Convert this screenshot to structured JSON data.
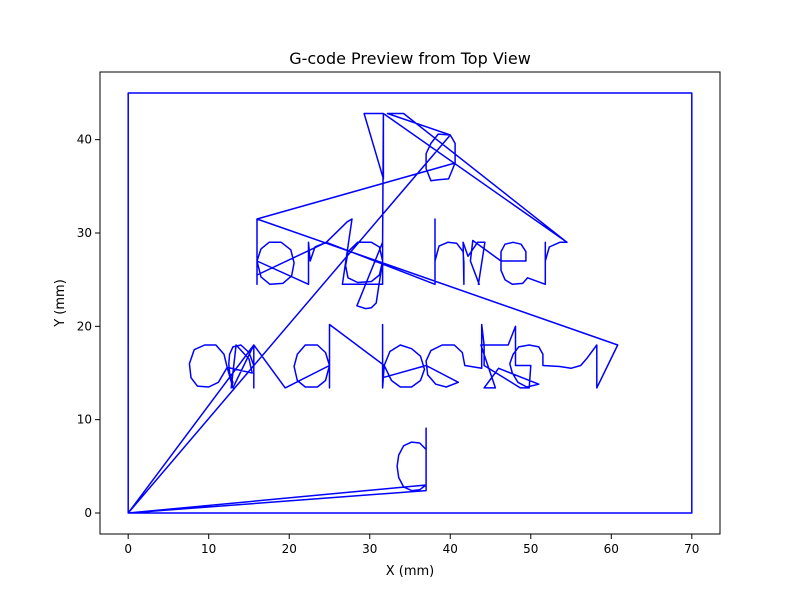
{
  "chart_data": {
    "type": "line",
    "title": "G-code Preview from Top View",
    "xlabel": "X (mm)",
    "ylabel": "Y (mm)",
    "xlim": [
      -3.5,
      73.5
    ],
    "ylim": [
      -2.25,
      47.25
    ],
    "xticks": [
      0,
      10,
      20,
      30,
      40,
      50,
      60,
      70
    ],
    "yticks": [
      0,
      10,
      20,
      30,
      40
    ],
    "grid": false,
    "legend": "none",
    "line_color": "#0000ff",
    "series": [
      {
        "points": [
          [
            0,
            0
          ],
          [
            70,
            0
          ],
          [
            70,
            45
          ],
          [
            0,
            45
          ],
          [
            0,
            0
          ],
          [
            37,
            3
          ],
          [
            36.2,
            2.5
          ],
          [
            35.2,
            2.4
          ],
          [
            34.2,
            2.8
          ],
          [
            33.6,
            3.8
          ],
          [
            33.4,
            5
          ],
          [
            33.6,
            6.2
          ],
          [
            34.2,
            7.2
          ],
          [
            35.2,
            7.6
          ],
          [
            36.2,
            7.5
          ],
          [
            37,
            6.8
          ],
          [
            37,
            9.1
          ],
          [
            37,
            2.4
          ],
          [
            0,
            0
          ],
          [
            40,
            40.5
          ],
          [
            38.5,
            40.6
          ],
          [
            37.6,
            39.6
          ],
          [
            37,
            38.5
          ],
          [
            37,
            36.9
          ],
          [
            37.6,
            35.6
          ],
          [
            38.5,
            35.7
          ],
          [
            39.8,
            35.8
          ],
          [
            40.6,
            37.5
          ],
          [
            40.6,
            39.6
          ],
          [
            40,
            40.5
          ],
          [
            32.2,
            42.8
          ],
          [
            34.2,
            42.8
          ],
          [
            54.5,
            29
          ],
          [
            31.7,
            42.8
          ],
          [
            29.3,
            42.8
          ],
          [
            31.7,
            35.8
          ],
          [
            31.7,
            42.8
          ],
          [
            31.6,
            29
          ],
          [
            31.6,
            24.5
          ],
          [
            31.6,
            27
          ],
          [
            31.2,
            28.5
          ],
          [
            30.2,
            29
          ],
          [
            28.5,
            29
          ],
          [
            27.3,
            28
          ],
          [
            27,
            26.5
          ],
          [
            27.3,
            25.2
          ],
          [
            28.5,
            24.7
          ],
          [
            30.2,
            24.8
          ],
          [
            31.2,
            25.5
          ],
          [
            31.6,
            27
          ],
          [
            30.8,
            22.5
          ],
          [
            30.2,
            22
          ],
          [
            29.5,
            21.9
          ],
          [
            28.4,
            22.2
          ],
          [
            31.6,
            29
          ],
          [
            31.6,
            24.5
          ],
          [
            26.6,
            24.5
          ],
          [
            27.8,
            31.5
          ],
          [
            27.2,
            31.2
          ],
          [
            24.6,
            29
          ],
          [
            16,
            25.5
          ],
          [
            16,
            31.5
          ],
          [
            60.8,
            18
          ],
          [
            58.2,
            13.4
          ],
          [
            58.2,
            18
          ],
          [
            57,
            16.6
          ],
          [
            56.2,
            15.8
          ],
          [
            55,
            15.5
          ],
          [
            53.6,
            15.7
          ],
          [
            51.5,
            15.8
          ],
          [
            51.5,
            17
          ],
          [
            51,
            17.8
          ],
          [
            49.8,
            18
          ],
          [
            48.5,
            17.8
          ],
          [
            47.8,
            17
          ],
          [
            47.4,
            16
          ],
          [
            47.7,
            15
          ],
          [
            48.4,
            14
          ],
          [
            49.5,
            13.5
          ],
          [
            51,
            13.8
          ],
          [
            46,
            15.5
          ],
          [
            44.2,
            13.4
          ],
          [
            45.6,
            13.4
          ],
          [
            43.8,
            18
          ],
          [
            47.2,
            18
          ],
          [
            48.1,
            20
          ],
          [
            48.1,
            15.8
          ],
          [
            50,
            15.8
          ],
          [
            49.8,
            13.4
          ],
          [
            48.7,
            13.4
          ],
          [
            44.2,
            15.8
          ],
          [
            44.2,
            18
          ],
          [
            43.9,
            20.2
          ],
          [
            43.9,
            15.5
          ],
          [
            41.8,
            15.8
          ],
          [
            41.5,
            17.2
          ],
          [
            40.5,
            18
          ],
          [
            39,
            18
          ],
          [
            37.6,
            17.4
          ],
          [
            37,
            16.3
          ],
          [
            37.2,
            14.8
          ],
          [
            38.2,
            13.8
          ],
          [
            39.5,
            13.5
          ],
          [
            41,
            14
          ],
          [
            37,
            15.8
          ],
          [
            31.6,
            14.5
          ],
          [
            31.6,
            20.2
          ],
          [
            31.6,
            13.4
          ],
          [
            31.8,
            15.8
          ],
          [
            32.5,
            17.3
          ],
          [
            33.8,
            18
          ],
          [
            35.2,
            17.6
          ],
          [
            36.3,
            16.8
          ],
          [
            36.8,
            15.4
          ],
          [
            36.3,
            14.2
          ],
          [
            35.2,
            13.5
          ],
          [
            33.8,
            13.5
          ],
          [
            32.7,
            14.2
          ],
          [
            31.8,
            15.8
          ],
          [
            25,
            20.2
          ],
          [
            25,
            13.4
          ],
          [
            25,
            15.8
          ],
          [
            24.5,
            17.2
          ],
          [
            23.5,
            18
          ],
          [
            22,
            18
          ],
          [
            21,
            17
          ],
          [
            20.6,
            15.7
          ],
          [
            21,
            14.2
          ],
          [
            22,
            13.5
          ],
          [
            23.5,
            13.5
          ],
          [
            24.5,
            14.2
          ],
          [
            25,
            15.8
          ],
          [
            19.5,
            13.4
          ],
          [
            15.6,
            18
          ],
          [
            15.6,
            13.4
          ],
          [
            15.6,
            15.8
          ],
          [
            15,
            17.2
          ],
          [
            14,
            18
          ],
          [
            13,
            17.8
          ],
          [
            12.6,
            17
          ],
          [
            12.5,
            16
          ],
          [
            12.6,
            15
          ],
          [
            13,
            14
          ],
          [
            12.8,
            13.4
          ],
          [
            13.4,
            18
          ],
          [
            15,
            16.5
          ],
          [
            15.4,
            15
          ],
          [
            12.3,
            15.6
          ],
          [
            11.9,
            17
          ],
          [
            10.9,
            18
          ],
          [
            9.5,
            18
          ],
          [
            8.2,
            17.5
          ],
          [
            7.6,
            16
          ],
          [
            7.8,
            14.5
          ],
          [
            8.6,
            13.6
          ],
          [
            10,
            13.5
          ],
          [
            11.2,
            14
          ],
          [
            12.3,
            15.6
          ],
          [
            13,
            13.4
          ],
          [
            15.6,
            18
          ],
          [
            0,
            0
          ],
          [
            40,
            40.5
          ],
          [
            40.6,
            39.6
          ],
          [
            40.6,
            37.5
          ],
          [
            16,
            31.5
          ],
          [
            16,
            24.5
          ],
          [
            16,
            27
          ],
          [
            16.5,
            28.3
          ],
          [
            17.5,
            29
          ],
          [
            19,
            29
          ],
          [
            20.2,
            28.2
          ],
          [
            20.6,
            26.8
          ],
          [
            20.3,
            25.4
          ],
          [
            19.2,
            24.6
          ],
          [
            17.6,
            24.5
          ],
          [
            16.5,
            25.3
          ],
          [
            16,
            27
          ],
          [
            22.4,
            24.5
          ],
          [
            22.4,
            29
          ],
          [
            22.6,
            27
          ],
          [
            23.2,
            28.5
          ],
          [
            24.6,
            29
          ],
          [
            38.1,
            24.5
          ],
          [
            38.1,
            31.5
          ],
          [
            38.1,
            27
          ],
          [
            38.6,
            28.6
          ],
          [
            39.7,
            29
          ],
          [
            40.8,
            28.9
          ],
          [
            41.6,
            28
          ],
          [
            41.7,
            26.8
          ],
          [
            41.7,
            24.5
          ],
          [
            41.6,
            29
          ],
          [
            42.2,
            27.5
          ],
          [
            43.4,
            29
          ],
          [
            44.3,
            29
          ],
          [
            43.5,
            24.5
          ],
          [
            43.6,
            24.5
          ],
          [
            42.5,
            27
          ],
          [
            42.8,
            29.2
          ],
          [
            46.3,
            27
          ],
          [
            49.4,
            27
          ],
          [
            49.4,
            28
          ],
          [
            48.8,
            28.8
          ],
          [
            47.8,
            29
          ],
          [
            46.8,
            28.8
          ],
          [
            46.3,
            28
          ],
          [
            46.3,
            26
          ],
          [
            46.8,
            25
          ],
          [
            47.7,
            24.5
          ],
          [
            49,
            24.6
          ],
          [
            49.6,
            25.2
          ],
          [
            51.8,
            24.5
          ],
          [
            51.8,
            29
          ],
          [
            51.8,
            27
          ],
          [
            52.3,
            28.5
          ],
          [
            53.6,
            29
          ],
          [
            54.5,
            29
          ]
        ]
      }
    ]
  }
}
